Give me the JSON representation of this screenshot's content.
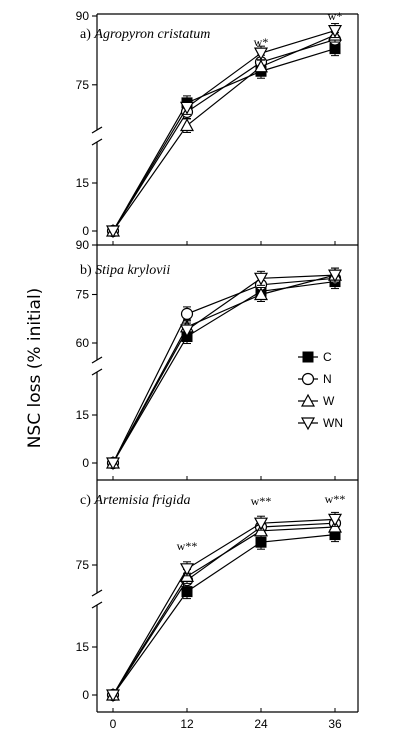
{
  "figure": {
    "ylabel": "NSC loss (% initial)"
  },
  "legend": {
    "items": [
      {
        "label": "C",
        "marker": "square-filled"
      },
      {
        "label": "N",
        "marker": "circle-open"
      },
      {
        "label": "W",
        "marker": "triangle-up-open"
      },
      {
        "label": "WN",
        "marker": "triangle-down-open"
      }
    ]
  },
  "chart_data": [
    {
      "type": "line",
      "title": "a) Agropyron cristatum",
      "title_prefix": "a)",
      "title_species": "Agropyron cristatum",
      "x": [
        0,
        12,
        24,
        36
      ],
      "xticks": [
        "0",
        "12",
        "24",
        "36"
      ],
      "yticks": [
        "0",
        "15",
        "75",
        "90"
      ],
      "y_axis_broken": true,
      "series": [
        {
          "name": "C",
          "values": [
            0,
            71,
            78,
            83
          ]
        },
        {
          "name": "N",
          "values": [
            0,
            69,
            80,
            85
          ]
        },
        {
          "name": "W",
          "values": [
            0,
            66,
            79,
            86
          ]
        },
        {
          "name": "WN",
          "values": [
            0,
            70,
            82,
            87
          ]
        }
      ],
      "annotations": [
        {
          "x": 24,
          "text": "w*"
        },
        {
          "x": 36,
          "text": "w*"
        }
      ]
    },
    {
      "type": "line",
      "title": "b) Stipa krylovii",
      "title_prefix": "b)",
      "title_species": "Stipa krylovii",
      "x": [
        0,
        12,
        24,
        36
      ],
      "xticks": [
        "0",
        "12",
        "24",
        "36"
      ],
      "yticks": [
        "0",
        "15",
        "60",
        "75",
        "90"
      ],
      "y_axis_broken": true,
      "series": [
        {
          "name": "C",
          "values": [
            0,
            62,
            76,
            79
          ]
        },
        {
          "name": "N",
          "values": [
            0,
            69,
            78,
            80
          ]
        },
        {
          "name": "W",
          "values": [
            0,
            65,
            75,
            81
          ]
        },
        {
          "name": "WN",
          "values": [
            0,
            64,
            80,
            81
          ]
        }
      ],
      "annotations": []
    },
    {
      "type": "line",
      "title": "c) Artemisia frigida",
      "title_prefix": "c)",
      "title_species": "Artemisia frigida",
      "x": [
        0,
        12,
        24,
        36
      ],
      "xticks": [
        "0",
        "12",
        "24",
        "36"
      ],
      "yticks": [
        "0",
        "15",
        "75"
      ],
      "y_axis_broken": true,
      "series": [
        {
          "name": "C",
          "values": [
            0,
            68,
            81,
            83
          ]
        },
        {
          "name": "N",
          "values": [
            0,
            71,
            85,
            86
          ]
        },
        {
          "name": "W",
          "values": [
            0,
            72,
            84,
            85
          ]
        },
        {
          "name": "WN",
          "values": [
            0,
            74,
            86,
            87
          ]
        }
      ],
      "annotations": [
        {
          "x": 12,
          "text": "w**"
        },
        {
          "x": 24,
          "text": "w**"
        },
        {
          "x": 36,
          "text": "w**"
        }
      ]
    }
  ]
}
